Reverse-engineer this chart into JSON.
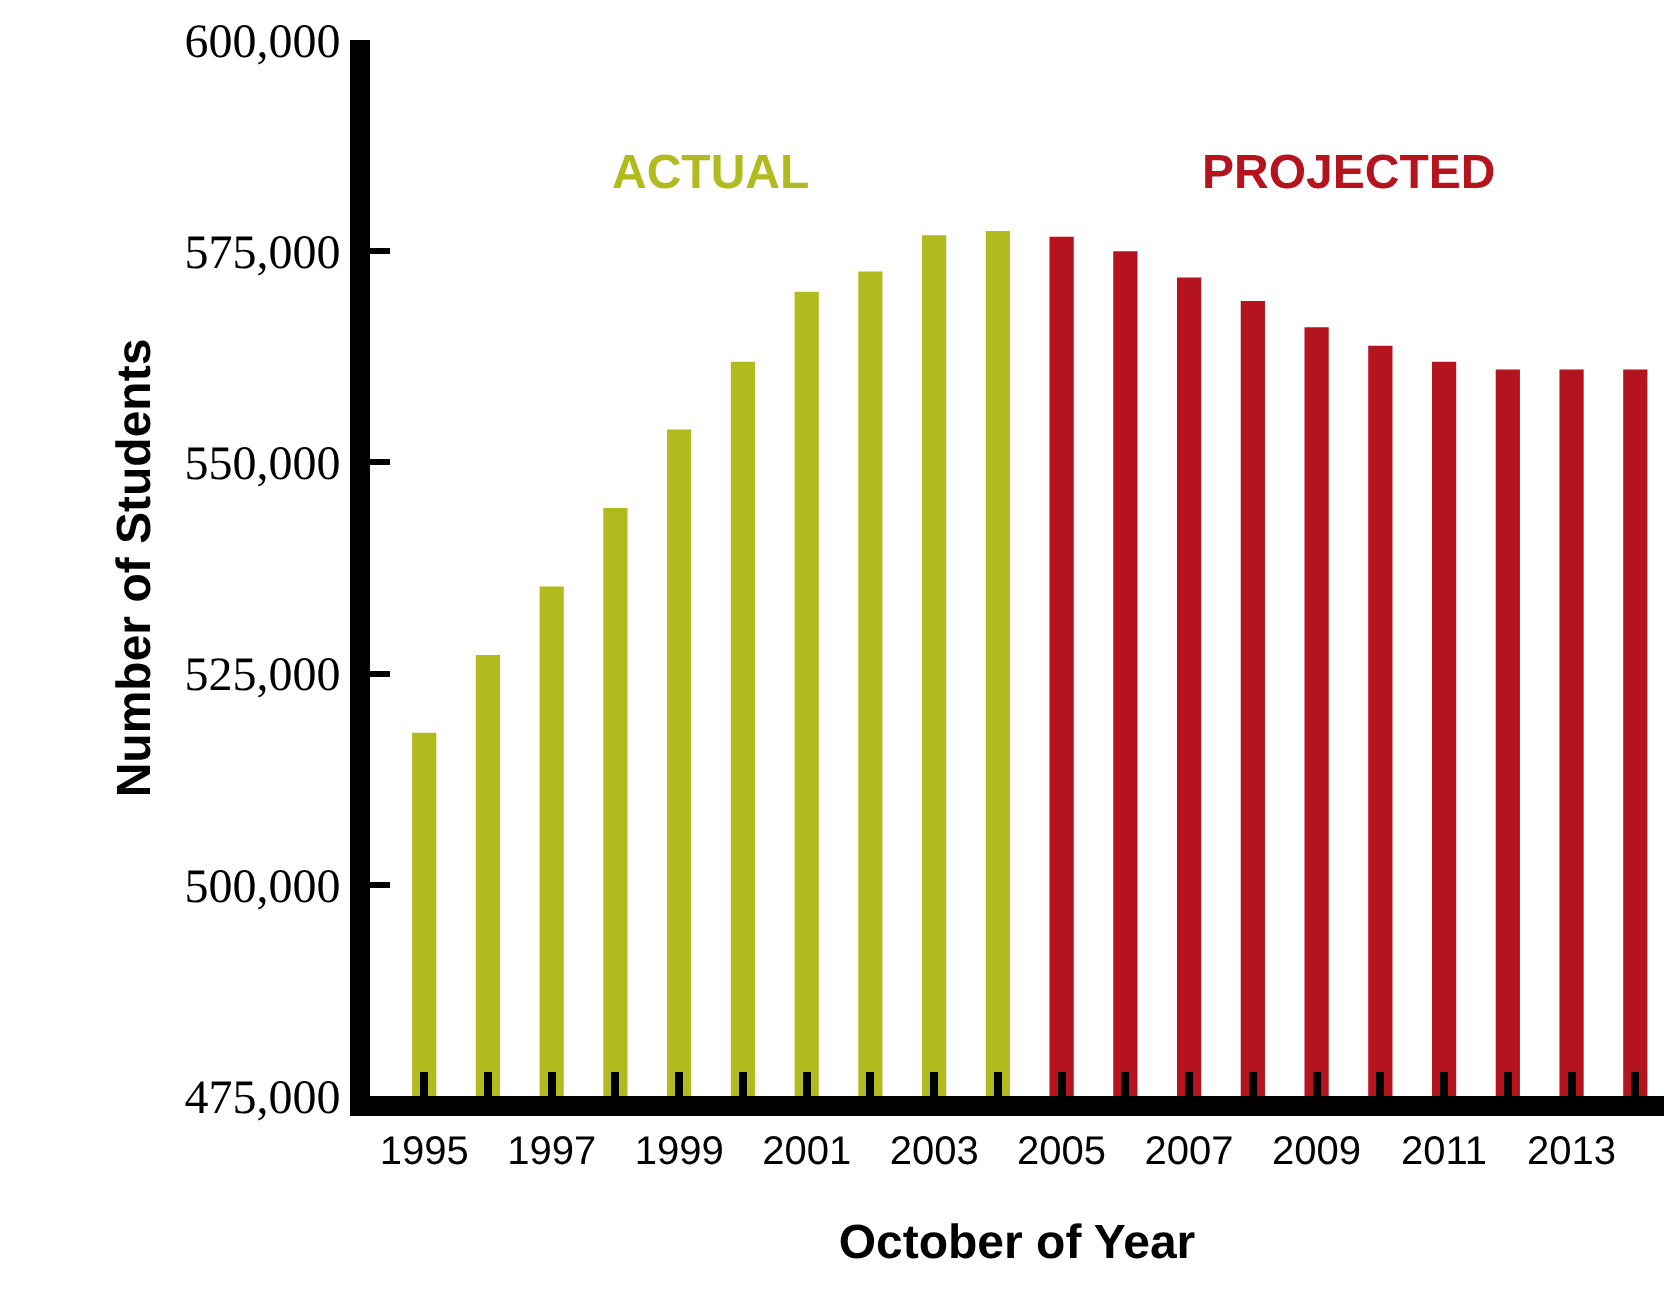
{
  "chart_data": {
    "type": "bar",
    "xlabel": "October of Year",
    "ylabel": "Number of Students",
    "categories": [
      "1995",
      null,
      "1997",
      null,
      "1999",
      null,
      "2001",
      null,
      "2003",
      null,
      "2005",
      null,
      "2007",
      null,
      "2009",
      null,
      "2011",
      null,
      "2013",
      null
    ],
    "series": [
      {
        "name": "ACTUAL",
        "color": "#b2bb1e",
        "values": [
          518000,
          527200,
          535300,
          544600,
          553900,
          561900,
          570200,
          572600,
          576900,
          577400,
          null,
          null,
          null,
          null,
          null,
          null,
          null,
          null,
          null,
          null
        ]
      },
      {
        "name": "PROJECTED",
        "color": "#b5131d",
        "values": [
          null,
          null,
          null,
          null,
          null,
          null,
          null,
          null,
          null,
          null,
          576700,
          575000,
          571900,
          569100,
          566000,
          563800,
          561900,
          561000,
          561000,
          561000
        ]
      }
    ],
    "ylim": [
      475000,
      600000
    ],
    "yticks": [
      {
        "value": 475000,
        "label": "475,000"
      },
      {
        "value": 500000,
        "label": "500,000"
      },
      {
        "value": 525000,
        "label": "525,000"
      },
      {
        "value": 550000,
        "label": "550,000"
      },
      {
        "value": 575000,
        "label": "575,000"
      },
      {
        "value": 600000,
        "label": "600,000"
      }
    ],
    "legend": false
  }
}
